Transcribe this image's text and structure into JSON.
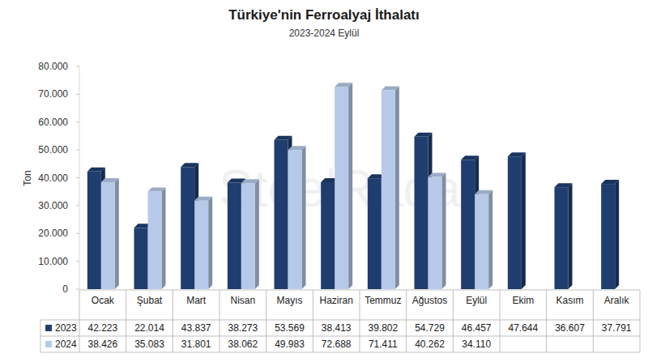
{
  "chart_data": {
    "type": "bar",
    "title": "Türkiye'nin Ferroalyaj İthalatı",
    "subtitle": "2023-2024 Eylül",
    "watermark": "SteelRadar",
    "y_label": "Ton",
    "categories": [
      "Ocak",
      "Şubat",
      "Mart",
      "Nisan",
      "Mayıs",
      "Haziran",
      "Temmuz",
      "Ağustos",
      "Eylül",
      "Ekim",
      "Kasım",
      "Aralık"
    ],
    "series": [
      {
        "name": "2023",
        "color": "#1f3d6e",
        "values": [
          42223,
          22014,
          43837,
          38273,
          53569,
          38413,
          39802,
          54729,
          46457,
          47644,
          36607,
          37791
        ],
        "value_labels": [
          "42.223",
          "22.014",
          "43.837",
          "38.273",
          "53.569",
          "38.413",
          "39.802",
          "54.729",
          "46.457",
          "47.644",
          "36.607",
          "37.791"
        ]
      },
      {
        "name": "2024",
        "color": "#b7c9e8",
        "values": [
          38426,
          35083,
          31801,
          38062,
          49983,
          72688,
          71411,
          40262,
          34110,
          null,
          null,
          null
        ],
        "value_labels": [
          "38.426",
          "35.083",
          "31.801",
          "38.062",
          "49.983",
          "72.688",
          "71.411",
          "40.262",
          "34.110",
          null,
          null,
          null
        ]
      }
    ],
    "ylim": [
      0,
      80000
    ],
    "yticks": [
      0,
      {
        "value": 10000,
        "label": "10.000"
      },
      {
        "value": 20000,
        "label": "20.000"
      },
      {
        "value": 30000,
        "label": "30.000"
      },
      {
        "value": 40000,
        "label": "40.000"
      },
      {
        "value": 50000,
        "label": "50.000"
      },
      {
        "value": 60000,
        "label": "60.000"
      },
      {
        "value": 70000,
        "label": "70.000"
      },
      {
        "value": 80000,
        "label": "80.000"
      }
    ],
    "grid": false,
    "legend": "bottom"
  }
}
